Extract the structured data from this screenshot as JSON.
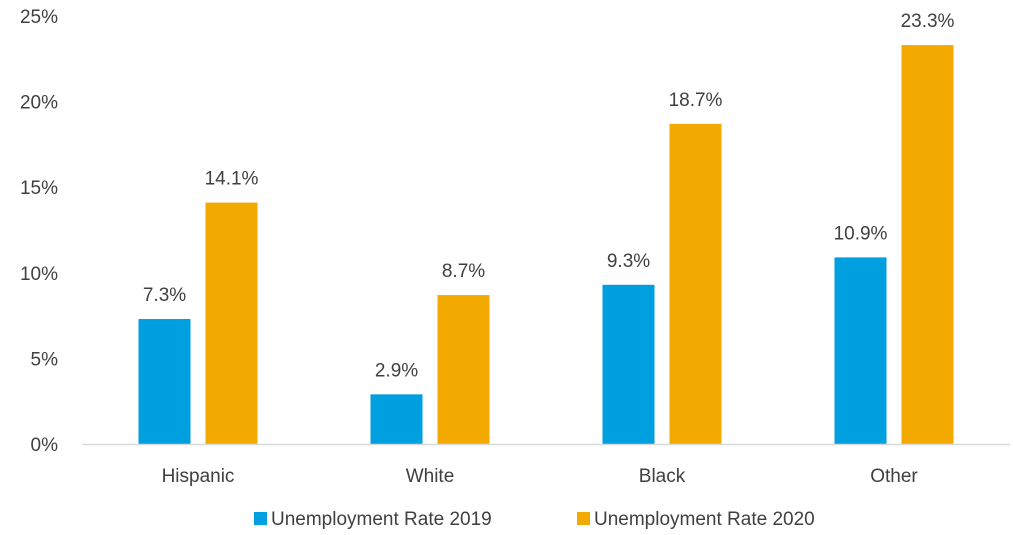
{
  "chart_data": {
    "type": "bar",
    "categories": [
      "Hispanic",
      "White",
      "Black",
      "Other"
    ],
    "series": [
      {
        "name": "Unemployment Rate 2019",
        "values": [
          7.3,
          2.9,
          9.3,
          10.9
        ],
        "labels": [
          "7.3%",
          "2.9%",
          "9.3%",
          "10.9%"
        ],
        "color": "#009FDF"
      },
      {
        "name": "Unemployment Rate 2020",
        "values": [
          14.1,
          8.7,
          18.7,
          23.3
        ],
        "labels": [
          "14.1%",
          "8.7%",
          "18.7%",
          "23.3%"
        ],
        "color": "#F2A900"
      }
    ],
    "y_ticks": [
      0,
      5,
      10,
      15,
      20,
      25
    ],
    "y_tick_labels": [
      "0%",
      "5%",
      "10%",
      "15%",
      "20%",
      "25%"
    ],
    "ylim": [
      0,
      25
    ],
    "grid": false,
    "legend_position": "bottom",
    "axis_color": "#D9D9D9"
  }
}
